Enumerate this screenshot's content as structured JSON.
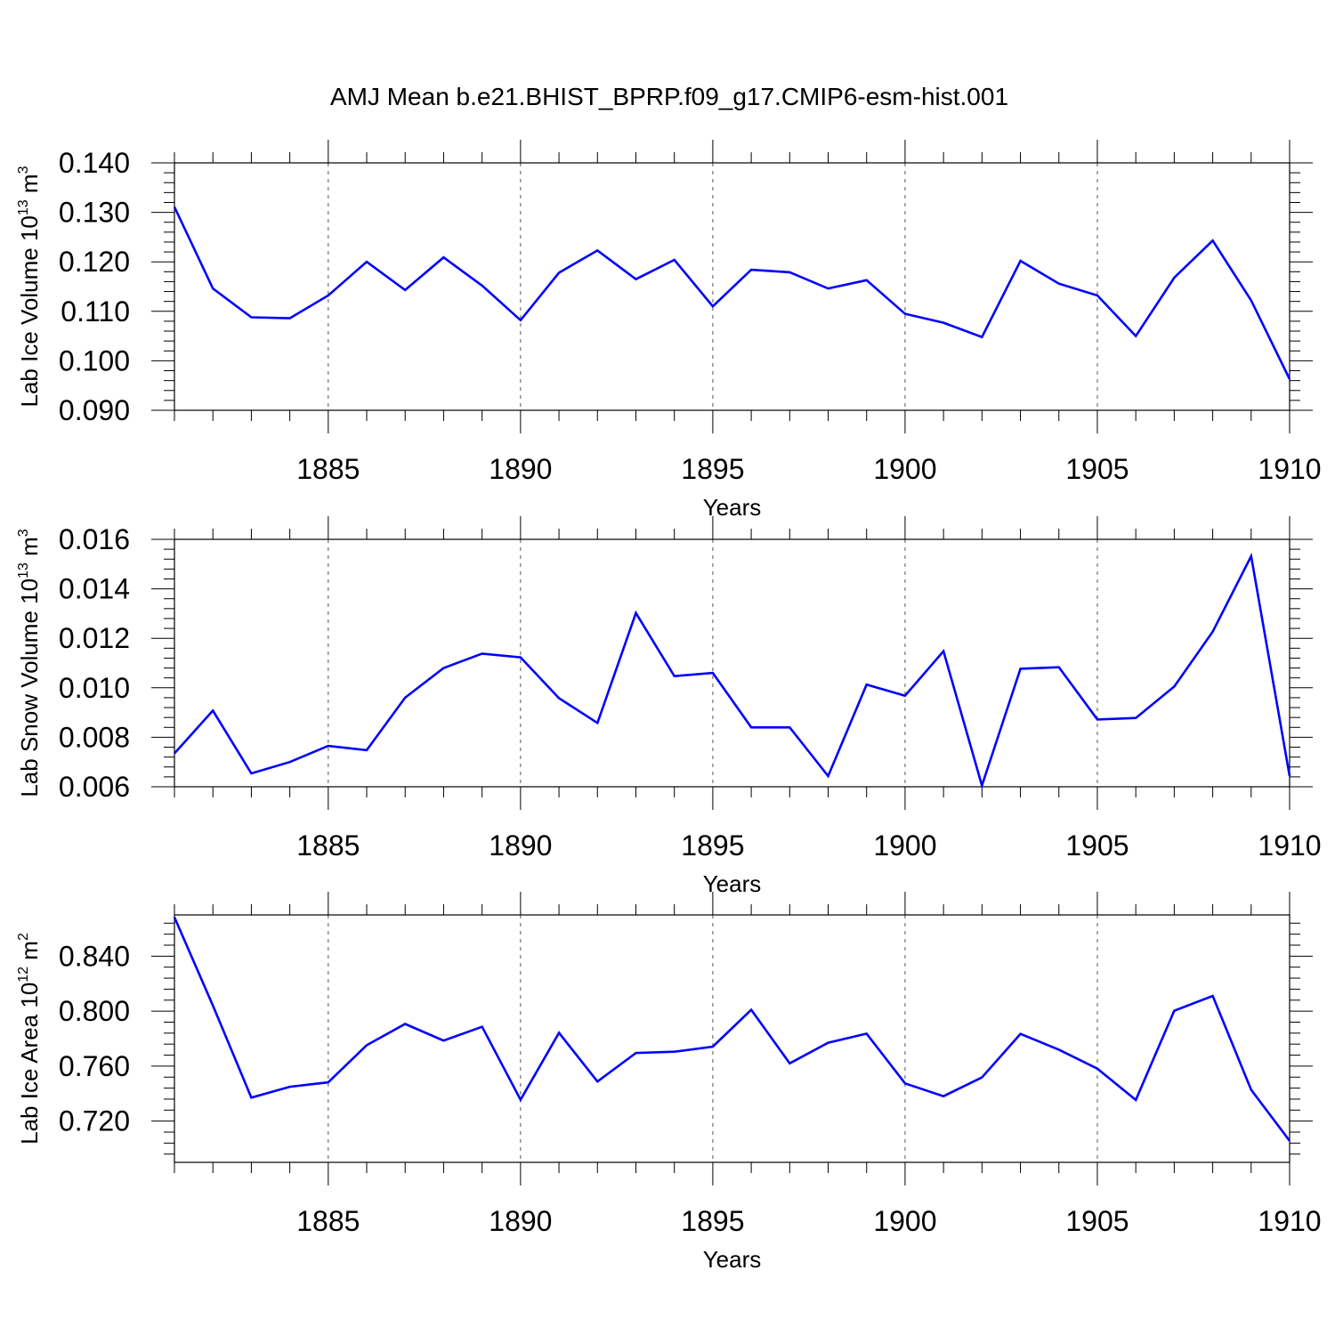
{
  "title": "AMJ Mean b.e21.BHIST_BPRP.f09_g17.CMIP6-esm-hist.001",
  "colors": {
    "line": "#0000ff",
    "axis": "#000000",
    "grid": "#555555"
  },
  "chart_data": [
    {
      "type": "line",
      "xlabel": "Years",
      "ylabel": "Lab Ice Volume 10",
      "ylabel_sup": "13",
      "ylabel_unit": " m",
      "ylabel_unit_sup": "3",
      "xlim": [
        1881,
        1910
      ],
      "ylim": [
        0.09,
        0.14
      ],
      "yticks": [
        0.09,
        0.1,
        0.11,
        0.12,
        0.13,
        0.14
      ],
      "ytick_labels": [
        "0.090",
        "0.100",
        "0.110",
        "0.120",
        "0.130",
        "0.140"
      ],
      "xticks": [
        1885,
        1890,
        1895,
        1900,
        1905,
        1910
      ],
      "xtick_labels": [
        "1885",
        "1890",
        "1895",
        "1900",
        "1905",
        "1910"
      ],
      "x": [
        1881,
        1882,
        1883,
        1884,
        1885,
        1886,
        1887,
        1888,
        1889,
        1890,
        1891,
        1892,
        1893,
        1894,
        1895,
        1896,
        1897,
        1898,
        1899,
        1900,
        1901,
        1902,
        1903,
        1904,
        1905,
        1906,
        1907,
        1908,
        1909,
        1910
      ],
      "values": [
        0.1311,
        0.1146,
        0.1088,
        0.1086,
        0.1132,
        0.12,
        0.1143,
        0.1209,
        0.1152,
        0.1082,
        0.1178,
        0.1223,
        0.1165,
        0.1204,
        0.111,
        0.1184,
        0.1179,
        0.1146,
        0.1163,
        0.1095,
        0.1077,
        0.1048,
        0.1202,
        0.1156,
        0.1132,
        0.105,
        0.1168,
        0.1243,
        0.1122,
        0.0963
      ]
    },
    {
      "type": "line",
      "xlabel": "Years",
      "ylabel": "Lab Snow Volume 10",
      "ylabel_sup": "13",
      "ylabel_unit": " m",
      "ylabel_unit_sup": "3",
      "xlim": [
        1881,
        1910
      ],
      "ylim": [
        0.006,
        0.016
      ],
      "yticks": [
        0.006,
        0.008,
        0.01,
        0.012,
        0.014,
        0.016
      ],
      "ytick_labels": [
        "0.006",
        "0.008",
        "0.010",
        "0.012",
        "0.014",
        "0.016"
      ],
      "xticks": [
        1885,
        1890,
        1895,
        1900,
        1905,
        1910
      ],
      "xtick_labels": [
        "1885",
        "1890",
        "1895",
        "1900",
        "1905",
        "1910"
      ],
      "x": [
        1881,
        1882,
        1883,
        1884,
        1885,
        1886,
        1887,
        1888,
        1889,
        1890,
        1891,
        1892,
        1893,
        1894,
        1895,
        1896,
        1897,
        1898,
        1899,
        1900,
        1901,
        1902,
        1903,
        1904,
        1905,
        1906,
        1907,
        1908,
        1909,
        1910
      ],
      "values": [
        0.00735,
        0.00908,
        0.00654,
        0.007,
        0.00765,
        0.00748,
        0.0096,
        0.0108,
        0.01138,
        0.01123,
        0.00958,
        0.00858,
        0.01302,
        0.01047,
        0.0106,
        0.0084,
        0.0084,
        0.00643,
        0.01013,
        0.00968,
        0.01148,
        0.00605,
        0.01077,
        0.01083,
        0.00872,
        0.00878,
        0.01005,
        0.01227,
        0.01532,
        0.00643
      ]
    },
    {
      "type": "line",
      "xlabel": "Years",
      "ylabel": "Lab Ice Area 10",
      "ylabel_sup": "12",
      "ylabel_unit": " m",
      "ylabel_unit_sup": "2",
      "xlim": [
        1881,
        1910
      ],
      "ylim": [
        0.69,
        0.87
      ],
      "yticks": [
        0.72,
        0.76,
        0.8,
        0.84
      ],
      "ytick_labels": [
        "0.720",
        "0.760",
        "0.800",
        "0.840"
      ],
      "xticks": [
        1885,
        1890,
        1895,
        1900,
        1905,
        1910
      ],
      "xtick_labels": [
        "1885",
        "1890",
        "1895",
        "1900",
        "1905",
        "1910"
      ],
      "x": [
        1881,
        1882,
        1883,
        1884,
        1885,
        1886,
        1887,
        1888,
        1889,
        1890,
        1891,
        1892,
        1893,
        1894,
        1895,
        1896,
        1897,
        1898,
        1899,
        1900,
        1901,
        1902,
        1903,
        1904,
        1905,
        1906,
        1907,
        1908,
        1909,
        1910
      ],
      "values": [
        0.8683,
        0.8041,
        0.7371,
        0.745,
        0.7482,
        0.7752,
        0.7907,
        0.7786,
        0.7886,
        0.7355,
        0.7842,
        0.7488,
        0.7696,
        0.7705,
        0.7742,
        0.801,
        0.762,
        0.777,
        0.7836,
        0.7474,
        0.7381,
        0.7518,
        0.7834,
        0.772,
        0.7582,
        0.7354,
        0.8003,
        0.8111,
        0.7428,
        0.7057
      ]
    }
  ]
}
